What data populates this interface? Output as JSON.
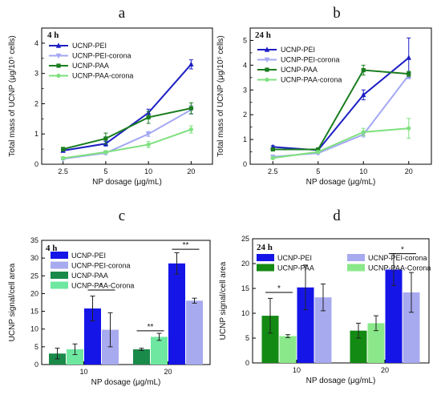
{
  "chart_data": [
    {
      "panel_label": "a",
      "type": "line",
      "inset_label": "4 h",
      "xlabel": "NP dosage (μg/mL)",
      "ylabel": "Total mass of UCNP (μg/10⁵ cells)",
      "categories": [
        "2.5",
        "5",
        "10",
        "20"
      ],
      "ylim": [
        0,
        4.5
      ],
      "yticks": [
        "0",
        "1",
        "2",
        "3",
        "4"
      ],
      "yticks_minor": [
        0.5,
        1.5,
        2.5,
        3.5
      ],
      "series": [
        {
          "name": "UCNP-PEI",
          "color": "#1c1ec3",
          "marker": "triangle",
          "values": [
            0.45,
            0.68,
            1.7,
            3.3
          ],
          "err": [
            0.05,
            0.08,
            0.12,
            0.15
          ]
        },
        {
          "name": "UCNP-PEI-corona",
          "color": "#a3a8f3",
          "marker": "triangle-down",
          "values": [
            0.18,
            0.37,
            1.0,
            1.8
          ],
          "err": [
            0.04,
            0.05,
            0.08,
            0.15
          ]
        },
        {
          "name": "UCNP-PAA",
          "color": "#1a7d1f",
          "marker": "square",
          "values": [
            0.5,
            0.85,
            1.55,
            1.85
          ],
          "err": [
            0.06,
            0.18,
            0.2,
            0.18
          ]
        },
        {
          "name": "UCNP-PAA-corona",
          "color": "#7ee07e",
          "marker": "circle",
          "values": [
            0.2,
            0.4,
            0.65,
            1.15
          ],
          "err": [
            0.04,
            0.05,
            0.1,
            0.12
          ]
        }
      ]
    },
    {
      "panel_label": "b",
      "type": "line",
      "inset_label": "24 h",
      "xlabel": "NP dosage (μg/mL)",
      "ylabel": "Total mass of UCNP (μg/10⁵ cells)",
      "categories": [
        "2.5",
        "5",
        "10",
        "20"
      ],
      "ylim": [
        0,
        5.5
      ],
      "yticks": [
        "0",
        "1",
        "2",
        "3",
        "4",
        "5"
      ],
      "yticks_minor": [
        0.5,
        1.5,
        2.5,
        3.5,
        4.5
      ],
      "series": [
        {
          "name": "UCNP-PEI",
          "color": "#1c1ec3",
          "marker": "triangle",
          "values": [
            0.7,
            0.57,
            2.8,
            4.3
          ],
          "err": [
            0.05,
            0.06,
            0.2,
            0.8
          ]
        },
        {
          "name": "UCNP-PEI-corona",
          "color": "#a3a8f3",
          "marker": "triangle-down",
          "values": [
            0.3,
            0.45,
            1.2,
            3.6
          ],
          "err": [
            0.04,
            0.05,
            0.1,
            0.15
          ]
        },
        {
          "name": "UCNP-PAA",
          "color": "#1a7d1f",
          "marker": "square",
          "values": [
            0.6,
            0.6,
            3.8,
            3.65
          ],
          "err": [
            0.05,
            0.05,
            0.2,
            0.1
          ]
        },
        {
          "name": "UCNP-PAA-corona",
          "color": "#7ee07e",
          "marker": "circle",
          "values": [
            0.25,
            0.5,
            1.3,
            1.45
          ],
          "err": [
            0.04,
            0.05,
            0.15,
            0.4
          ]
        }
      ]
    },
    {
      "panel_label": "c",
      "type": "bar",
      "inset_label": "4 h",
      "xlabel": "NP dosage (μg/mL)",
      "ylabel": "UCNP signal/cell area",
      "categories": [
        "10",
        "20"
      ],
      "ylim": [
        0,
        35
      ],
      "yticks": [
        "0",
        "5",
        "10",
        "15",
        "20",
        "25",
        "30",
        "35"
      ],
      "series": [
        {
          "name": "UCNP-PEI",
          "color": "#1515e8",
          "values": [
            15.8,
            28.5
          ],
          "err": [
            3.5,
            3.0
          ]
        },
        {
          "name": "UCNP-PEI-corona",
          "color": "#a8aaf0",
          "values": [
            9.8,
            18.0
          ],
          "err": [
            4.8,
            0.7
          ]
        },
        {
          "name": "UCNP-PAA",
          "color": "#1a8a4a",
          "values": [
            3.1,
            4.3
          ],
          "err": [
            1.5,
            0.3
          ]
        },
        {
          "name": "UCNP-PAA-Corona",
          "color": "#6ee8a0",
          "values": [
            4.3,
            7.8
          ],
          "err": [
            1.5,
            1.0
          ]
        }
      ],
      "bar_order": [
        "UCNP-PAA",
        "UCNP-PAA-Corona",
        "UCNP-PEI",
        "UCNP-PEI-corona"
      ],
      "significance": [
        {
          "category": "10",
          "from": "UCNP-PEI",
          "to": "UCNP-PEI-corona",
          "y": 21.0,
          "label": "*"
        },
        {
          "category": "20",
          "from": "UCNP-PAA",
          "to": "UCNP-PAA-Corona",
          "y": 9.5,
          "label": "**"
        },
        {
          "category": "20",
          "from": "UCNP-PEI",
          "to": "UCNP-PEI-corona",
          "y": 32.5,
          "label": "**"
        }
      ]
    },
    {
      "panel_label": "d",
      "type": "bar",
      "inset_label": "24 h",
      "xlabel": "NP dosage (μg/mL)",
      "ylabel": "UCNP signal/cell area",
      "categories": [
        "10",
        "20"
      ],
      "ylim": [
        0,
        25
      ],
      "yticks": [
        "0",
        "5",
        "10",
        "15",
        "20",
        "25"
      ],
      "series": [
        {
          "name": "UCNP-PEI",
          "color": "#1515e8",
          "values": [
            15.2,
            18.8
          ],
          "err": [
            4.5,
            3.2
          ]
        },
        {
          "name": "UCNP-PEI-corona",
          "color": "#a8aaf0",
          "values": [
            13.2,
            14.2
          ],
          "err": [
            2.7,
            4.0
          ]
        },
        {
          "name": "UCNP-PAA",
          "color": "#138a13",
          "values": [
            9.5,
            6.5
          ],
          "err": [
            3.5,
            1.5
          ]
        },
        {
          "name": "UCNP-PAA-Corona",
          "color": "#8ae88a",
          "values": [
            5.4,
            8.0
          ],
          "err": [
            0.3,
            1.5
          ]
        }
      ],
      "bar_order": [
        "UCNP-PAA",
        "UCNP-PAA-Corona",
        "UCNP-PEI",
        "UCNP-PEI-corona"
      ],
      "significance": [
        {
          "category": "10",
          "from": "UCNP-PAA",
          "to": "UCNP-PAA-Corona",
          "y": 14.2,
          "label": "*"
        },
        {
          "category": "20",
          "from": "UCNP-PEI",
          "to": "UCNP-PEI-corona",
          "y": 22.0,
          "label": "*"
        }
      ]
    }
  ]
}
